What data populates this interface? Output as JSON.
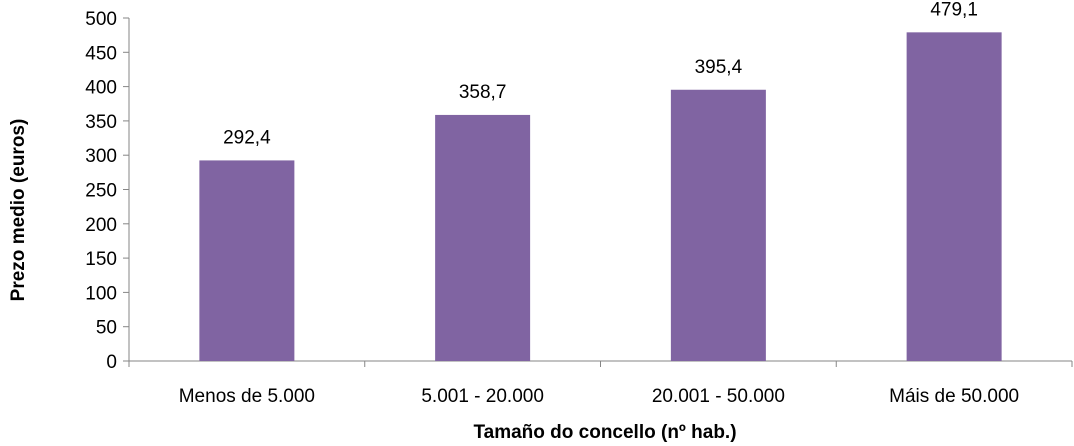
{
  "chart_data": {
    "type": "bar",
    "categories": [
      "Menos de 5.000",
      "5.001 - 20.000",
      "20.001 - 50.000",
      "Máis de 50.000"
    ],
    "values": [
      292.4,
      358.7,
      395.4,
      479.1
    ],
    "value_labels": [
      "292,4",
      "358,7",
      "395,4",
      "479,1"
    ],
    "yticks": [
      0,
      50,
      100,
      150,
      200,
      250,
      300,
      350,
      400,
      450,
      500
    ],
    "ylim": [
      0,
      500
    ],
    "xlabel": "Tamaño do concello (nº hab.)",
    "ylabel": "Prezo medio (euros)",
    "grid": false,
    "legend": "none",
    "bar_color": "#8064a2"
  }
}
